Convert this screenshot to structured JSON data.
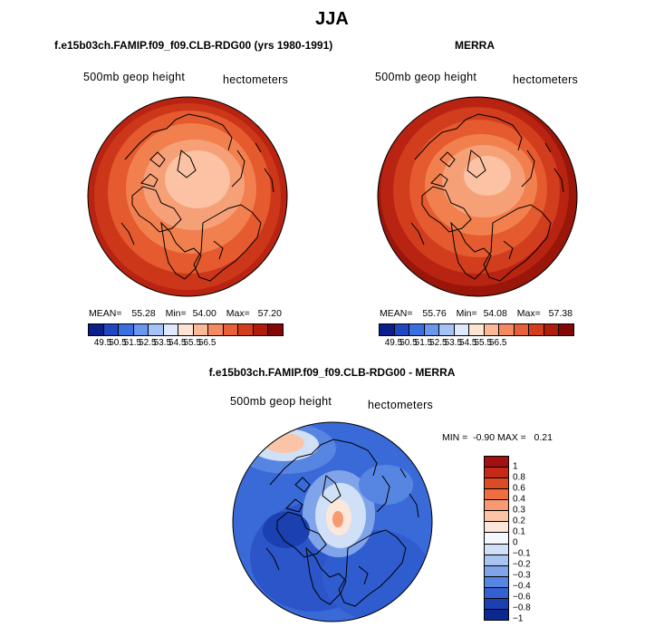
{
  "title": "JJA",
  "panels": [
    {
      "title": "f.e15b03ch.FAMIP.f09_f09.CLB-RDG00 (yrs 1980-1991)",
      "left_label": "500mb geop height",
      "right_label": "hectometers",
      "mean_label": "MEAN=",
      "mean": "55.28",
      "min_label": "Min=",
      "min": "54.00",
      "max_label": "Max=",
      "max": "57.20"
    },
    {
      "title": "MERRA",
      "left_label": "500mb geop height",
      "right_label": "hectometers",
      "mean_label": "MEAN=",
      "mean": "55.76",
      "min_label": "Min=",
      "min": "54.08",
      "max_label": "Max=",
      "max": "57.38"
    }
  ],
  "horizontal_colorbar": {
    "colors": [
      "#0b1e8c",
      "#1f47c2",
      "#3a6fe0",
      "#6a96ee",
      "#a6c3f5",
      "#dfe9fb",
      "#fde3d3",
      "#f9b896",
      "#f48a62",
      "#e8603a",
      "#d23d1e",
      "#b01c0e",
      "#820808"
    ],
    "ticks": [
      "49.5",
      "50.5",
      "51.5",
      "52.5",
      "53.5",
      "54.5",
      "55.5",
      "56.5"
    ]
  },
  "diff_panel": {
    "title": "f.e15b03ch.FAMIP.f09_f09.CLB-RDG00 - MERRA",
    "left_label": "500mb geop height",
    "right_label": "hectometers",
    "stats": "MIN =  -0.90 MAX =   0.21"
  },
  "vertical_colorbar": {
    "colors": [
      "#a31010",
      "#c52a16",
      "#dd4a26",
      "#ee6e40",
      "#f79a72",
      "#fcc4a6",
      "#fde6da",
      "#f4f7fd",
      "#cfe0f7",
      "#a9c4f1",
      "#7fa4ea",
      "#5785e2",
      "#3461d2",
      "#1a40b2",
      "#0a2890"
    ],
    "ticks": [
      "1",
      "0.8",
      "0.6",
      "0.4",
      "0.3",
      "0.2",
      "0.1",
      "0",
      "−0.1",
      "−0.2",
      "−0.3",
      "−0.4",
      "−0.6",
      "−0.8",
      "−1"
    ]
  }
}
